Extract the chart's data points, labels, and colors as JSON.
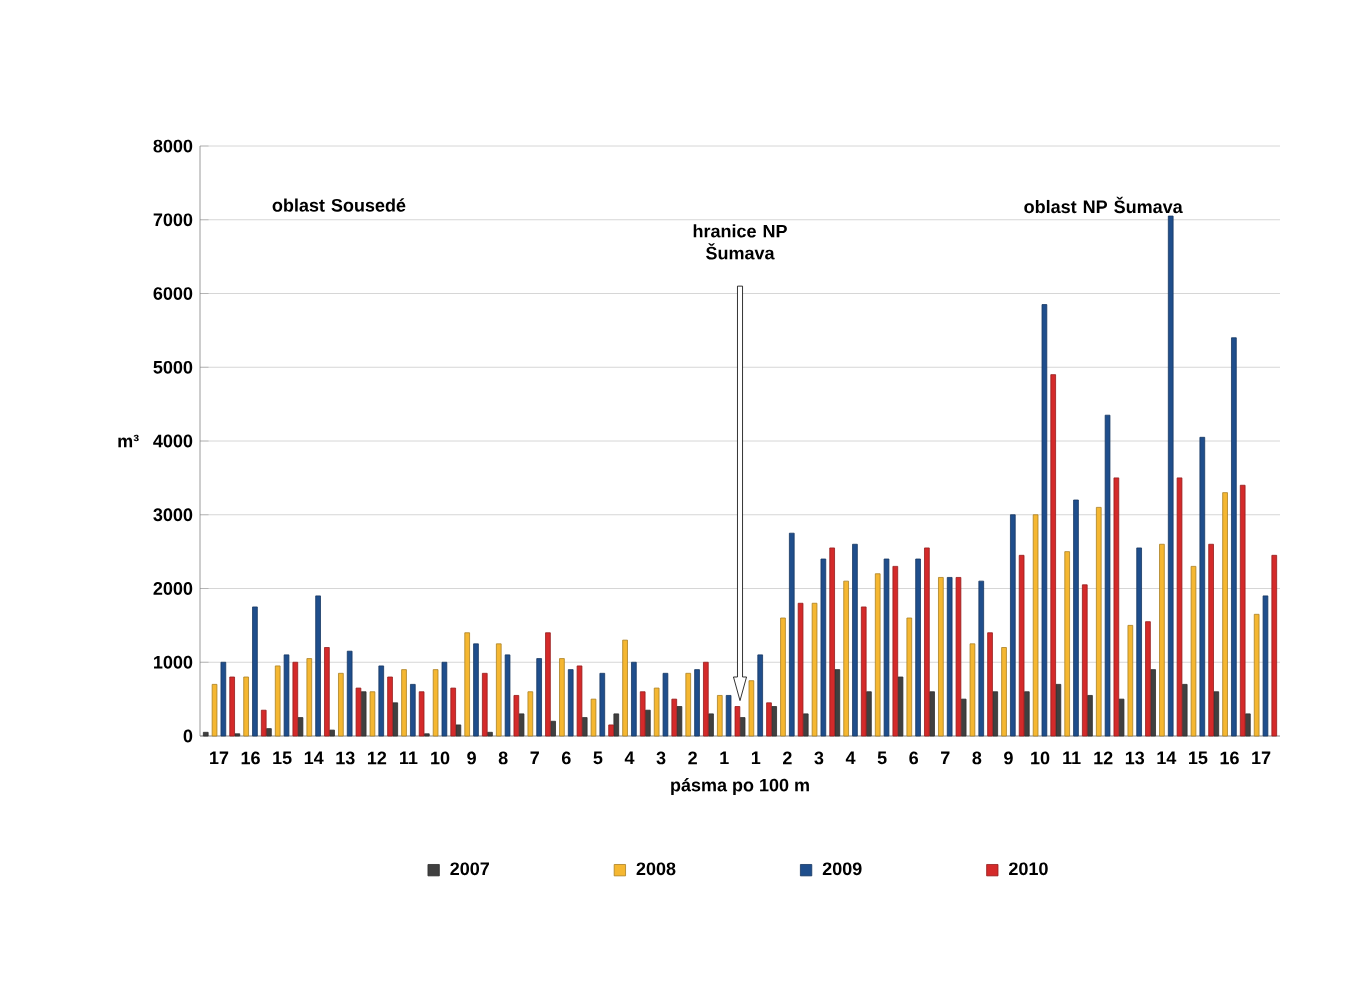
{
  "chart_data": {
    "type": "bar",
    "xlabel": "pásma po 100 m",
    "ylabel": "m³",
    "categories": [
      "17",
      "16",
      "15",
      "14",
      "13",
      "12",
      "11",
      "10",
      "9",
      "8",
      "7",
      "6",
      "5",
      "4",
      "3",
      "2",
      "1",
      "1",
      "2",
      "3",
      "4",
      "5",
      "6",
      "7",
      "8",
      "9",
      "10",
      "11",
      "12",
      "13",
      "14",
      "15",
      "16",
      "17"
    ],
    "series": [
      {
        "name": "2007",
        "color": "#404040",
        "values": [
          50,
          30,
          100,
          250,
          80,
          600,
          450,
          30,
          150,
          50,
          300,
          200,
          250,
          300,
          350,
          400,
          300,
          250,
          400,
          300,
          900,
          600,
          800,
          600,
          500,
          600,
          600,
          700,
          550,
          500,
          900,
          700,
          600,
          300
        ]
      },
      {
        "name": "2008",
        "color": "#f5b731",
        "values": [
          700,
          800,
          950,
          1050,
          850,
          600,
          900,
          900,
          1400,
          1250,
          600,
          1050,
          500,
          1300,
          650,
          850,
          550,
          750,
          1600,
          1800,
          2100,
          2200,
          1600,
          2150,
          1250,
          1200,
          3000,
          2500,
          3100,
          1500,
          2600,
          2300,
          3300,
          1650
        ]
      },
      {
        "name": "2009",
        "color": "#1f4e8c",
        "values": [
          1000,
          1750,
          1100,
          1900,
          1150,
          950,
          700,
          1000,
          1250,
          1100,
          1050,
          900,
          850,
          1000,
          850,
          900,
          550,
          1100,
          2750,
          2400,
          2600,
          2400,
          2400,
          2150,
          2100,
          3000,
          5850,
          3200,
          4350,
          2550,
          7050,
          4050,
          5400,
          1900
        ]
      },
      {
        "name": "2010",
        "color": "#d42a2a",
        "values": [
          800,
          350,
          1000,
          1200,
          650,
          800,
          600,
          650,
          850,
          550,
          1400,
          950,
          150,
          600,
          500,
          1000,
          400,
          450,
          1800,
          2550,
          1750,
          2300,
          2550,
          2150,
          1400,
          2450,
          4900,
          2050,
          3500,
          1550,
          3500,
          2600,
          3400,
          2450
        ]
      }
    ],
    "ylim": [
      0,
      8000
    ],
    "yticks": [
      0,
      1000,
      2000,
      3000,
      4000,
      5000,
      6000,
      7000,
      8000
    ],
    "grid": "y",
    "legend": "bottom",
    "annotations": [
      "oblast Sousedé",
      "hranice NP Šumava",
      "oblast NP Šumava"
    ]
  }
}
